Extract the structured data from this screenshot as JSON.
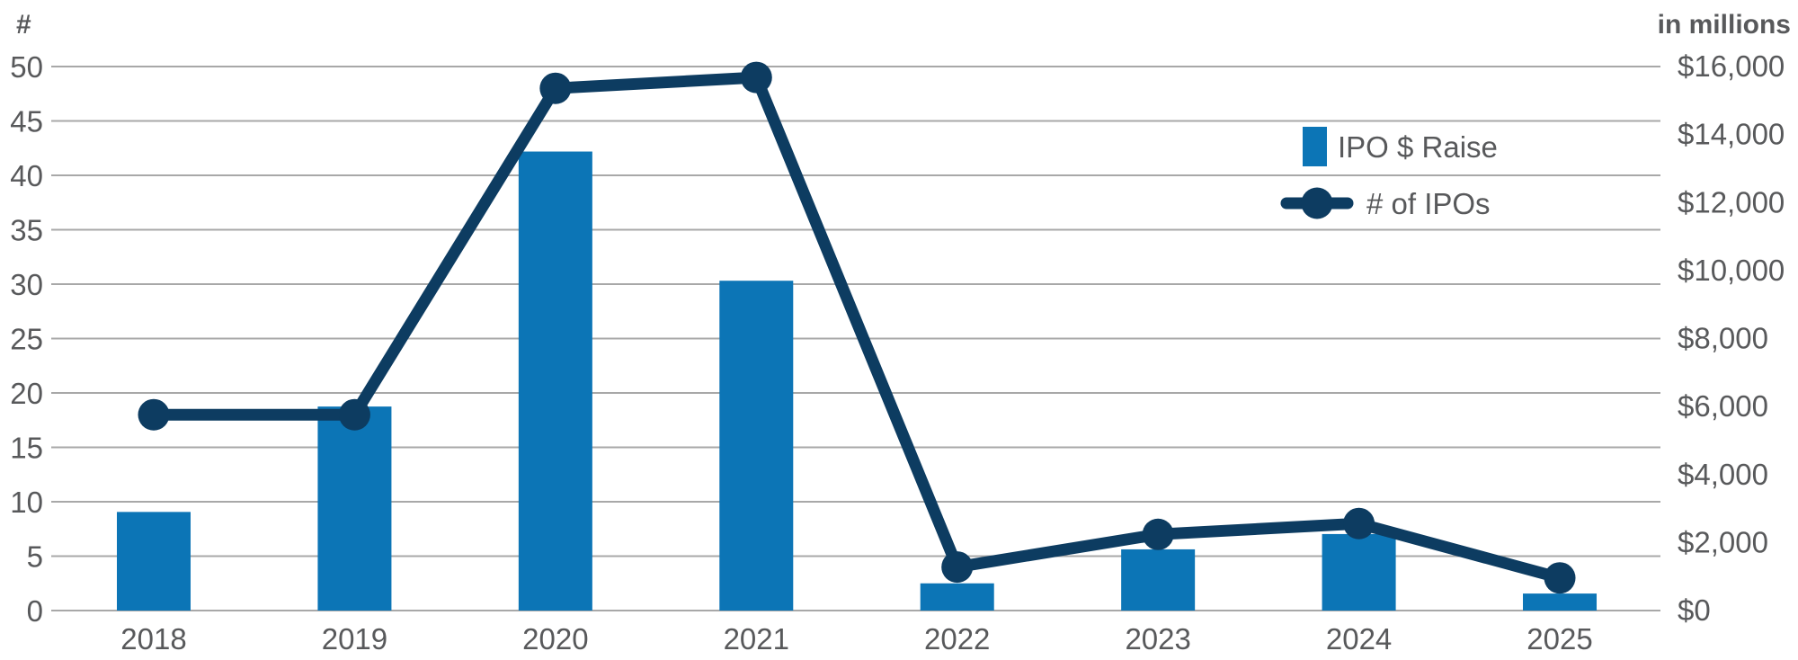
{
  "chart_data": {
    "type": "combo_bar_line",
    "title": "",
    "categories": [
      "2018",
      "2019",
      "2020",
      "2021",
      "2022",
      "2023",
      "2024",
      "2025"
    ],
    "series": [
      {
        "name": "IPO $ Raise",
        "type": "bar",
        "axis": "right",
        "values": [
          2900,
          6000,
          13500,
          9700,
          800,
          1800,
          2250,
          500
        ]
      },
      {
        "name": "# of IPOs",
        "type": "line",
        "axis": "left",
        "values": [
          18,
          18,
          48,
          49,
          4,
          7,
          8,
          3
        ]
      }
    ],
    "left_axis": {
      "title": "#",
      "min": 0,
      "max": 50,
      "step": 5,
      "tick_labels": [
        "0",
        "5",
        "10",
        "15",
        "20",
        "25",
        "30",
        "35",
        "40",
        "45",
        "50"
      ]
    },
    "right_axis": {
      "title": "in millions",
      "min": 0,
      "max": 16000,
      "step": 2000,
      "tick_labels": [
        "$0",
        "$2,000",
        "$4,000",
        "$6,000",
        "$8,000",
        "$10,000",
        "$12,000",
        "$14,000",
        "$16,000"
      ]
    },
    "legend": {
      "position": "top-right",
      "entries": [
        "IPO $ Raise",
        "# of IPOs"
      ]
    },
    "grid": true,
    "colors": {
      "bar": "#0C75B6",
      "line": "#0D3C61",
      "grid": "#A8A8A8",
      "text": "#58595B",
      "background": "#FFFFFF"
    }
  }
}
